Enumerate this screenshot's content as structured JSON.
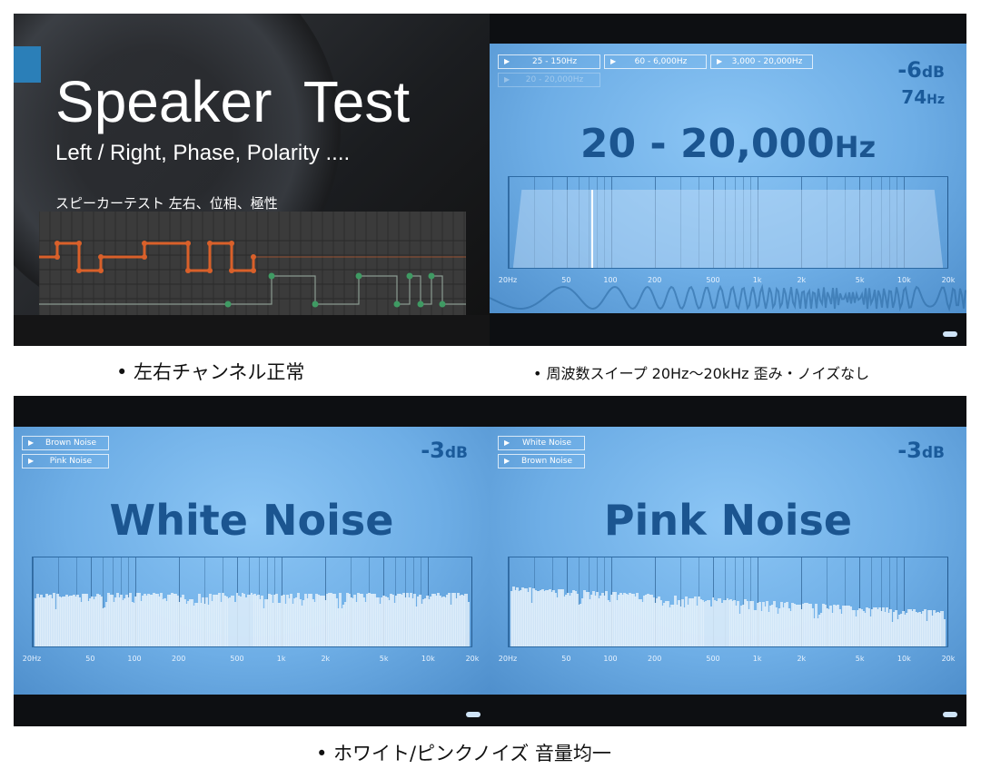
{
  "top_left": {
    "title": "Speaker  Test",
    "subtitle": "Left / Right, Phase, Polarity ....",
    "jp_subtitle": "スピーカーテスト 左右、位相、極性",
    "left_channel_color": "#d9602a",
    "right_channel_color": "#3f9a63"
  },
  "sweep": {
    "buttons": [
      "25 - 150Hz",
      "60 - 6,000Hz",
      "3,000 - 20,000Hz",
      "20 - 20,000Hz"
    ],
    "db": "-6",
    "db_unit": "dB",
    "freq": "74",
    "freq_unit": "Hz",
    "title": "20 - 20,000",
    "title_unit": "Hz",
    "current_frequency_hz": 74
  },
  "white": {
    "buttons": [
      "Brown Noise",
      "Pink Noise"
    ],
    "db": "-3",
    "db_unit": "dB",
    "title": "White Noise"
  },
  "pink": {
    "buttons": [
      "White Noise",
      "Brown Noise"
    ],
    "db": "-3",
    "db_unit": "dB",
    "title": "Pink Noise"
  },
  "axis_ticks": [
    "20Hz",
    "50",
    "100",
    "200",
    "500",
    "1k",
    "2k",
    "5k",
    "10k",
    "20k"
  ],
  "captions": {
    "top_left": "• 左右チャンネル正常",
    "top_right": "• 周波数スイープ 20Hz〜20kHz 歪み・ノイズなし",
    "bottom": "• ホワイト/ピンクノイズ 音量均一"
  }
}
